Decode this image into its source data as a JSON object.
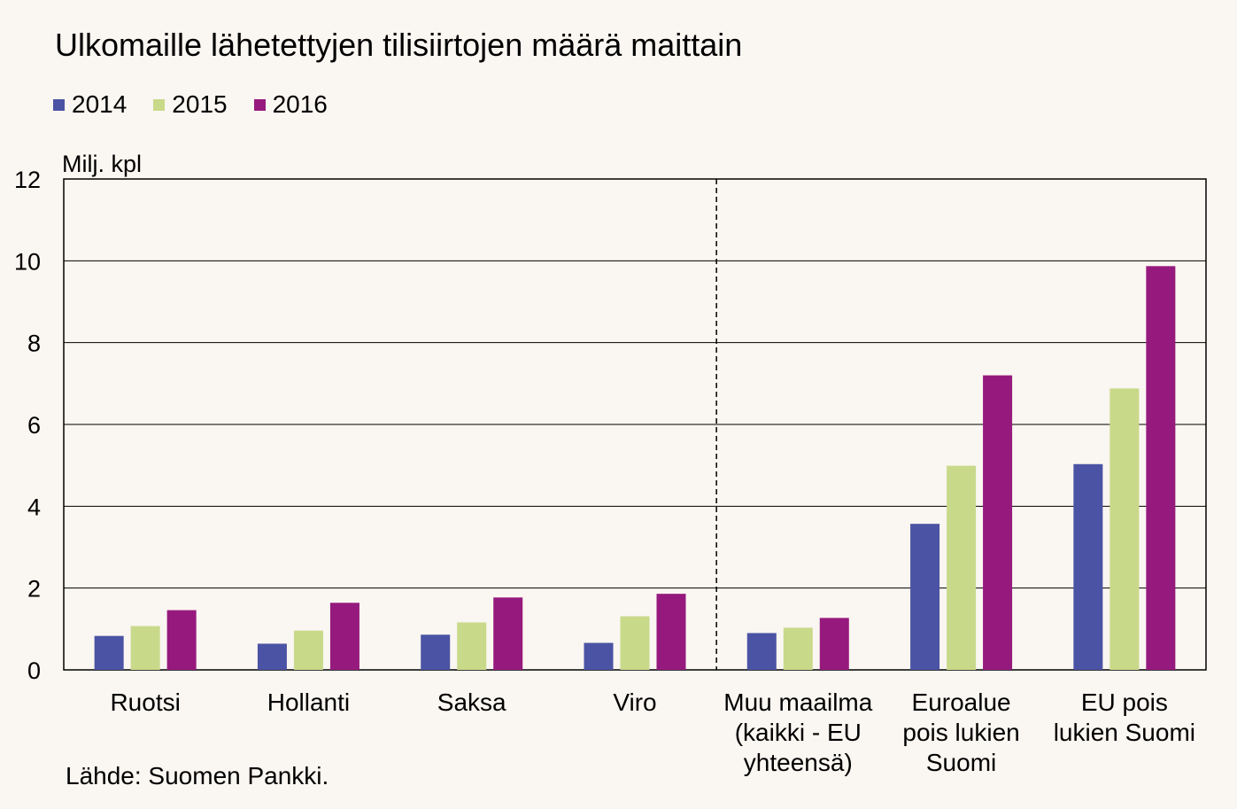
{
  "chart_data": {
    "type": "bar",
    "title": "Ulkomaille lähetettyjen tilisiirtojen määrä maittain",
    "ylabel": "Milj. kpl",
    "xlabel": "",
    "ylim": [
      0,
      12
    ],
    "yticks": [
      "0",
      "2",
      "4",
      "6",
      "8",
      "10",
      "12"
    ],
    "categories": [
      [
        "Ruotsi"
      ],
      [
        "Hollanti"
      ],
      [
        "Saksa"
      ],
      [
        "Viro"
      ],
      [
        "Muu maailma",
        "(kaikki - EU",
        "yhteensä)"
      ],
      [
        "Euroalue",
        "pois lukien",
        "Suomi"
      ],
      [
        "EU pois",
        "lukien Suomi"
      ]
    ],
    "series": [
      {
        "name": "2014",
        "color": "#4B53A4",
        "values": [
          0.83,
          0.64,
          0.86,
          0.66,
          0.9,
          3.57,
          5.03
        ]
      },
      {
        "name": "2015",
        "color": "#C9D98A",
        "values": [
          1.07,
          0.96,
          1.16,
          1.31,
          1.03,
          4.99,
          6.88
        ]
      },
      {
        "name": "2016",
        "color": "#961A7E",
        "values": [
          1.46,
          1.64,
          1.77,
          1.86,
          1.27,
          7.2,
          9.87
        ]
      }
    ],
    "grid": true,
    "legend": "top-left",
    "divider_after_category": 4
  },
  "source": "Lähde: Suomen Pankki."
}
